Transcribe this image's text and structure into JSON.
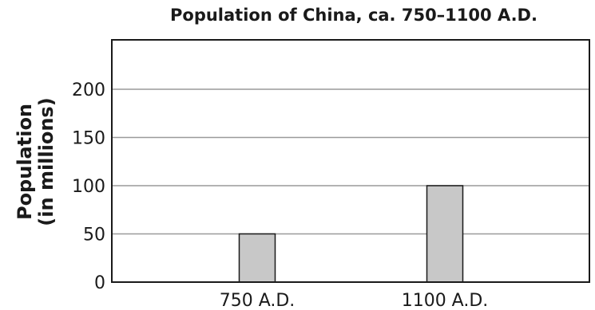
{
  "chart_data": {
    "type": "bar",
    "title": "Population of China, ca. 750–1100 A.D.",
    "ylabel_line1": "Population",
    "ylabel_line2": "(in millions)",
    "xlabel": "",
    "categories": [
      "750 A.D.",
      "1100 A.D."
    ],
    "values": [
      50,
      100
    ],
    "ylim": [
      0,
      200
    ],
    "yticks": [
      0,
      50,
      100,
      150,
      200
    ],
    "grid": true,
    "bar_color": "#c8c8c8",
    "grid_color": "#9a9a9a"
  }
}
